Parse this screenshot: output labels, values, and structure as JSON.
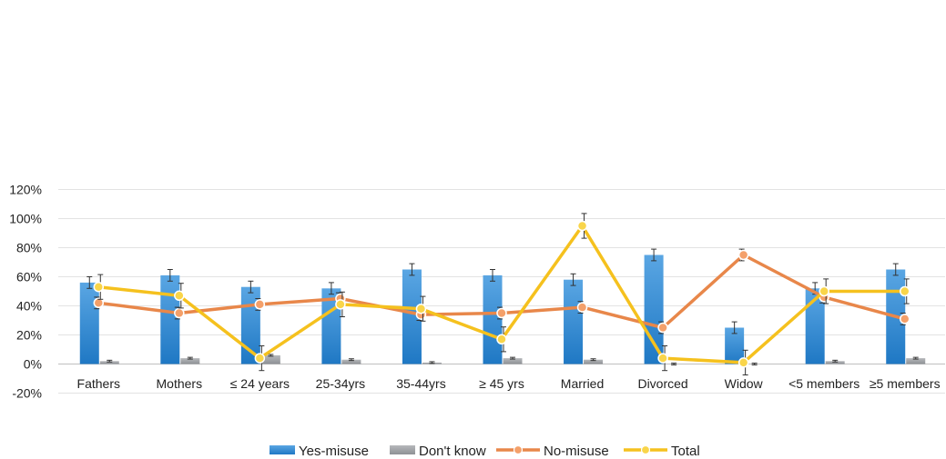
{
  "chart_data": {
    "type": "bar",
    "title": "",
    "xlabel": "",
    "ylabel": "",
    "categories": [
      "Fathers",
      "Mothers",
      "≤ 24 years",
      "25-34yrs",
      "35-44yrs",
      "≥ 45 yrs",
      "Married",
      "Divorced",
      "Widow",
      "<5 members",
      "≥5 members"
    ],
    "ylim": [
      -20,
      120
    ],
    "yticks": [
      -20,
      0,
      20,
      40,
      60,
      80,
      100,
      120
    ],
    "ytick_labels": [
      "-20%",
      "0%",
      "20%",
      "40%",
      "60%",
      "80%",
      "100%",
      "120%"
    ],
    "grid": true,
    "legend_position": "bottom",
    "series": [
      {
        "name": "Yes-misuse",
        "kind": "bar",
        "color": "#2e86cf",
        "values": [
          56,
          61,
          53,
          52,
          65,
          61,
          58,
          75,
          25,
          52,
          65
        ],
        "errors": [
          4,
          4,
          4,
          4,
          4,
          4,
          4,
          4,
          4,
          4,
          4
        ]
      },
      {
        "name": "Don't know",
        "kind": "bar",
        "color": "#a0a3a7",
        "values": [
          2,
          4,
          6,
          3,
          1,
          4,
          3,
          0,
          0,
          2,
          4
        ],
        "errors": [
          0.6,
          0.6,
          0.6,
          0.6,
          0.6,
          0.6,
          0.6,
          0.6,
          0.6,
          0.6,
          0.6
        ]
      },
      {
        "name": "No-misuse",
        "kind": "line",
        "color": "#e8874a",
        "values": [
          42,
          35,
          41,
          45,
          34,
          35,
          39,
          25,
          75,
          46,
          31
        ],
        "errors": [
          4,
          4,
          4,
          4,
          4,
          4,
          4,
          4,
          4,
          4,
          4
        ]
      },
      {
        "name": "Total",
        "kind": "line",
        "color": "#f5c11e",
        "values": [
          53,
          47,
          4,
          41,
          38,
          17,
          95,
          4,
          1,
          50,
          50
        ],
        "errors": [
          8.5,
          8.5,
          8.5,
          8.5,
          8.5,
          8.5,
          8.5,
          8.5,
          8.5,
          8.5,
          8.5
        ]
      }
    ]
  }
}
